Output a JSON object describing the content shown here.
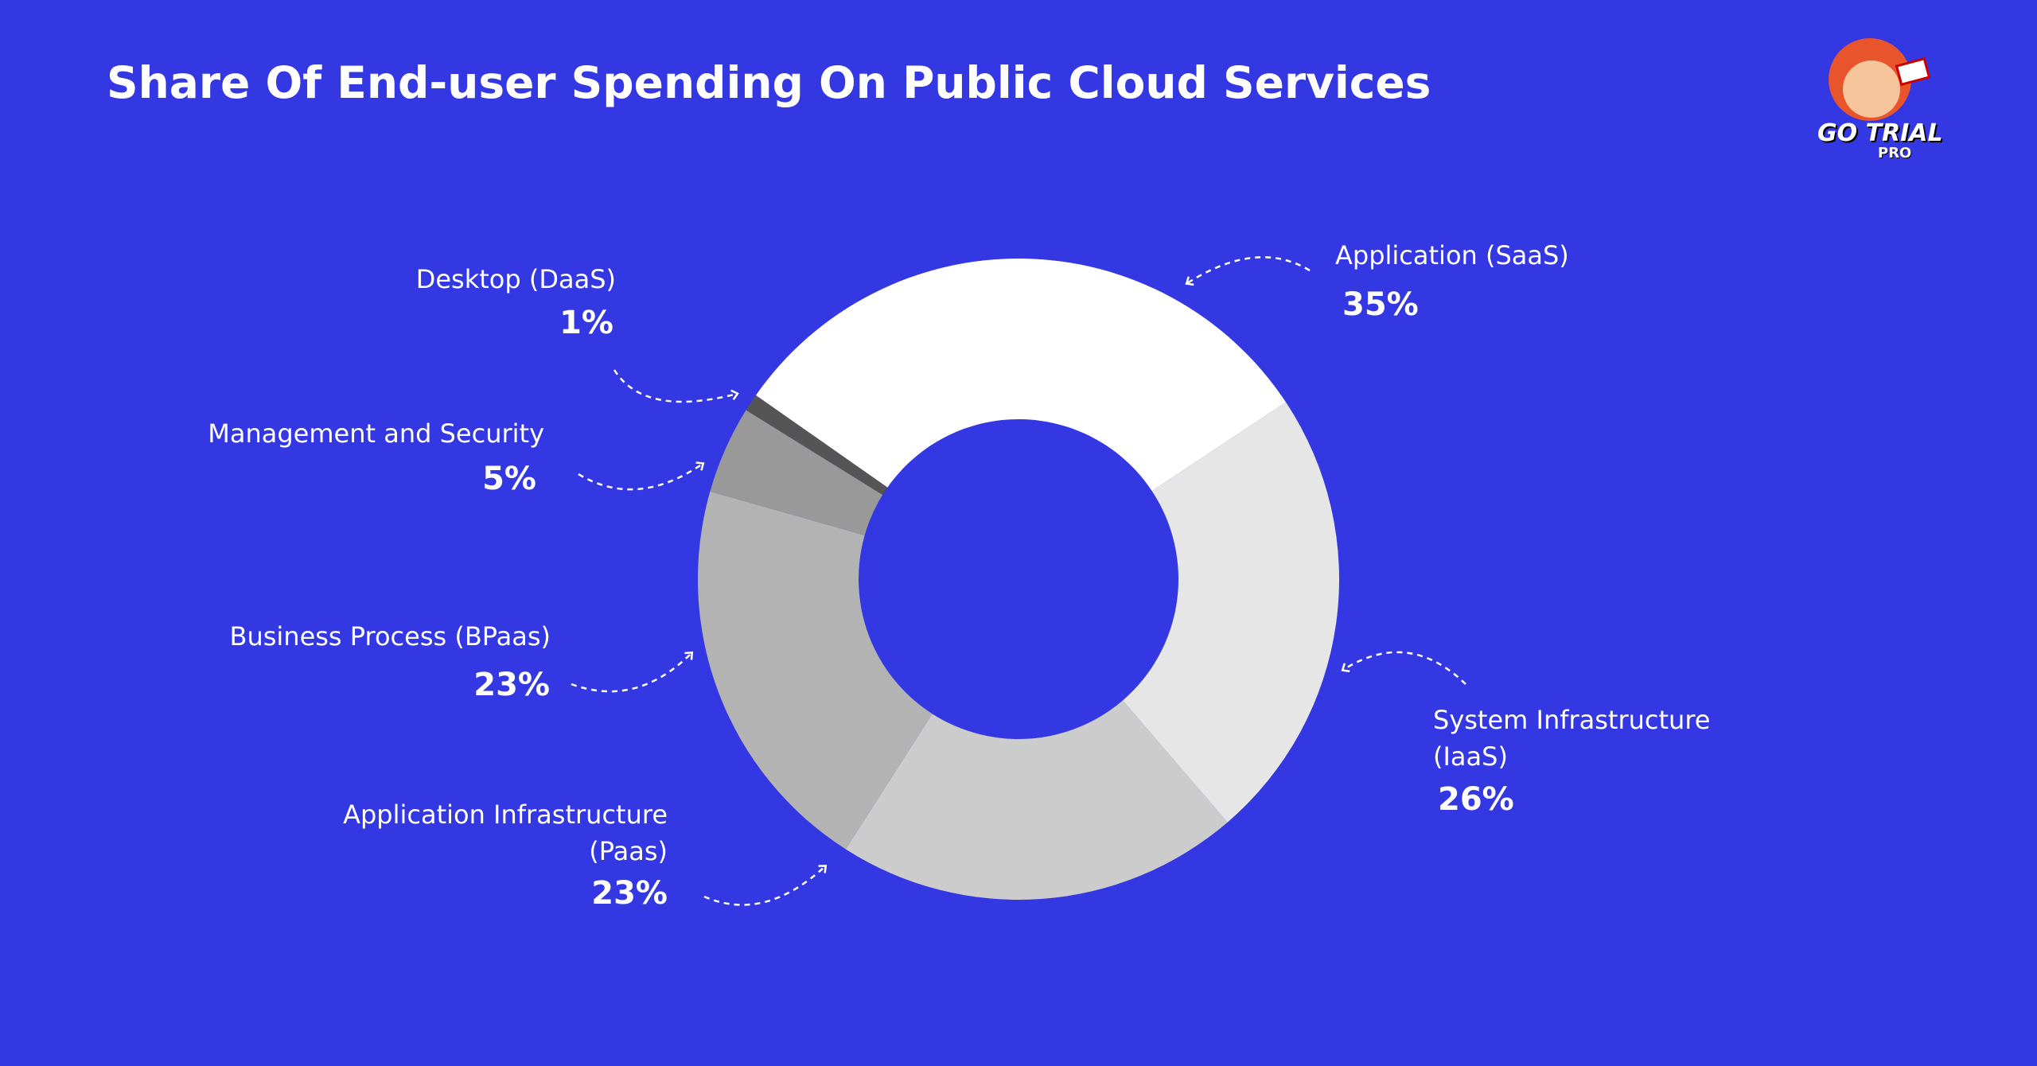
{
  "chart_data": {
    "type": "donut",
    "title": "Share Of End-user Spending On Public Cloud Services",
    "categories": [
      "Application (SaaS)",
      "System Infrastructure (IaaS)",
      "Application Infrastructure (Paas)",
      "Business Process (BPaas)",
      "Management and Security",
      "Desktop (DaaS)"
    ],
    "values": [
      35,
      26,
      23,
      23,
      5,
      1
    ],
    "value_labels": [
      "35%",
      "26%",
      "23%",
      "23%",
      "5%",
      "1%"
    ],
    "colors": [
      "#ffffff",
      "#e6e6e6",
      "#cccccc",
      "#b3b3b3",
      "#999999",
      "#555555"
    ]
  },
  "logo": {
    "line1": "GO TRIAL",
    "line2": "PRO"
  }
}
